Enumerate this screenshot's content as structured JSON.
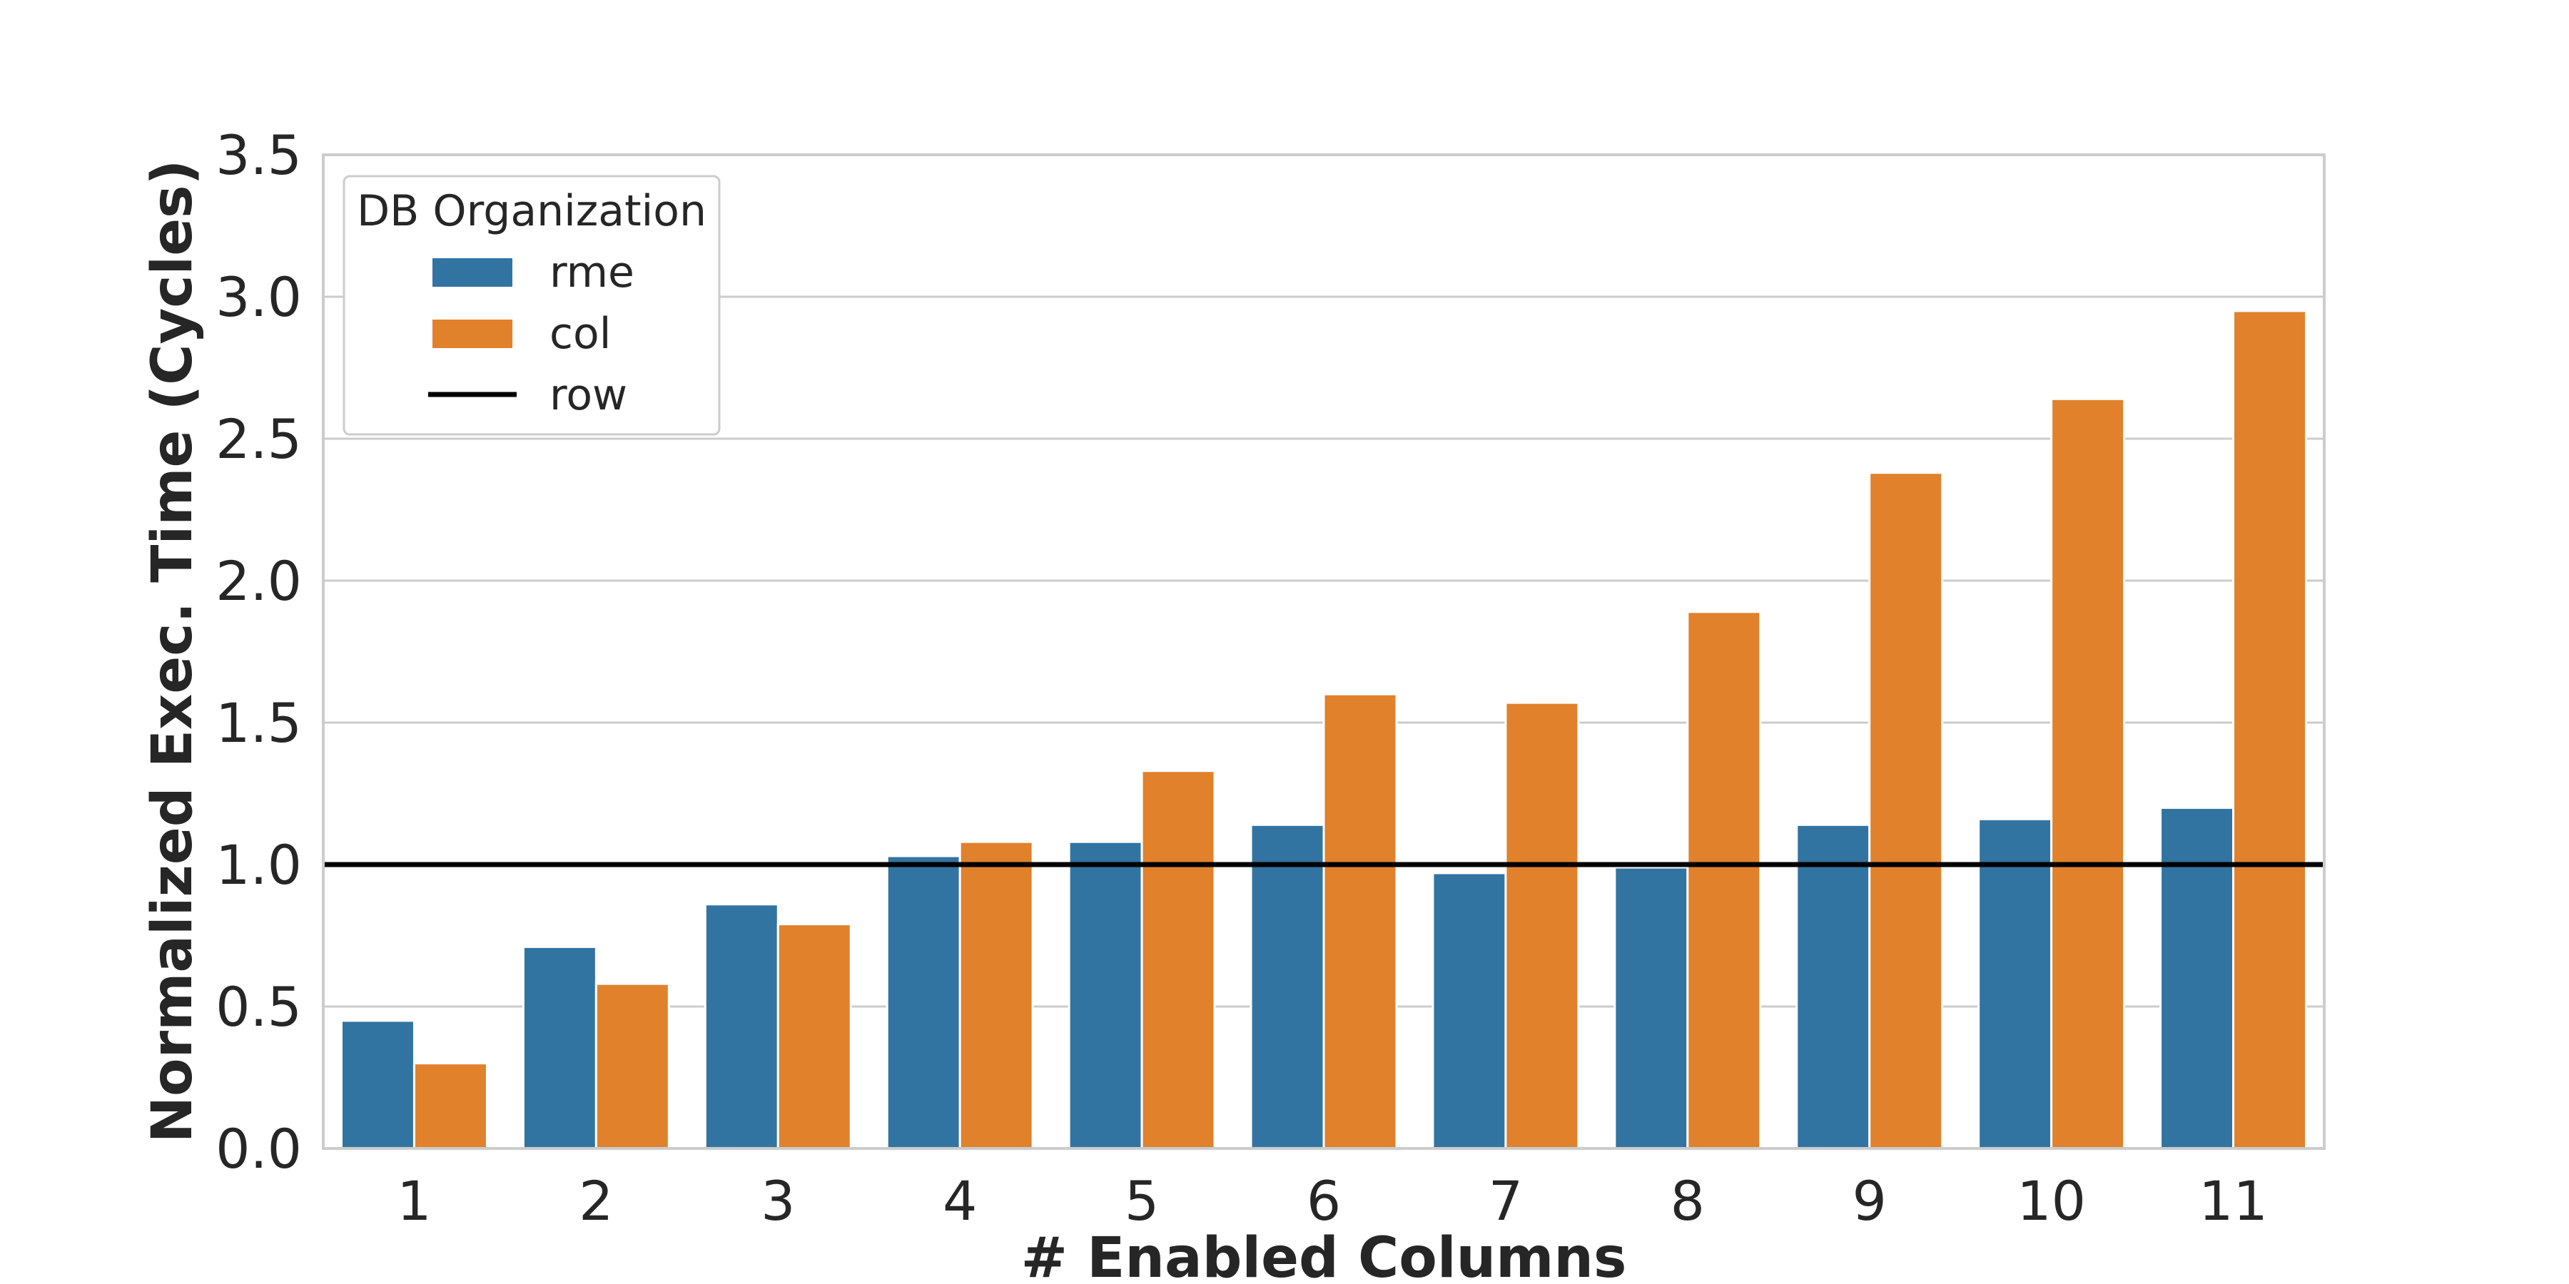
{
  "chart_data": {
    "type": "bar",
    "xlabel": "# Enabled Columns",
    "ylabel": "Normalized Exec. Time (Cycles)",
    "categories": [
      "1",
      "2",
      "3",
      "4",
      "5",
      "6",
      "7",
      "8",
      "9",
      "10",
      "11"
    ],
    "series": [
      {
        "name": "rme",
        "color": "#3274a1",
        "values": [
          0.45,
          0.71,
          0.86,
          1.03,
          1.08,
          1.14,
          0.97,
          0.99,
          1.14,
          1.16,
          1.2
        ]
      },
      {
        "name": "col",
        "color": "#e1812c",
        "values": [
          0.3,
          0.58,
          0.79,
          1.08,
          1.33,
          1.6,
          1.57,
          1.89,
          2.38,
          2.64,
          2.95
        ]
      }
    ],
    "reference_line": {
      "name": "row",
      "value": 1.0,
      "color": "#000000"
    },
    "ylim": [
      0,
      3.5
    ],
    "yticks": [
      "0.0",
      "0.5",
      "1.0",
      "1.5",
      "2.0",
      "2.5",
      "3.0",
      "3.5"
    ],
    "grid": "horizontal",
    "legend": {
      "title": "DB Organization",
      "placement": "top-left",
      "entries": [
        "rme",
        "col",
        "row"
      ]
    }
  }
}
